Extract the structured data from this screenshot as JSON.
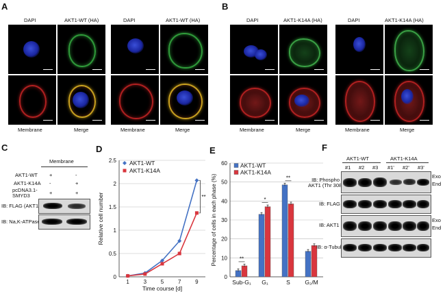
{
  "panels": {
    "A": "A",
    "B": "B",
    "C": "C",
    "D": "D",
    "E": "E",
    "F": "F"
  },
  "panelA": {
    "left": {
      "dapi": "DAPI",
      "stain": "AKT1-WT (HA)",
      "membrane": "Membrane",
      "merge": "Merge"
    },
    "right": {
      "dapi": "DAPI",
      "stain": "AKT1-WT (HA)",
      "membrane": "Membrane",
      "merge": "Merge"
    }
  },
  "panelB": {
    "left": {
      "dapi": "DAPI",
      "stain": "AKT1-K14A (HA)",
      "membrane": "Membrane",
      "merge": "Merge"
    },
    "right": {
      "dapi": "DAPI",
      "stain": "AKT1-K14A (HA)",
      "membrane": "Membrane",
      "merge": "Merge"
    }
  },
  "panelC": {
    "header": "Membrane",
    "rows": [
      {
        "label": "AKT1-WT",
        "lane1": "+",
        "lane2": "-"
      },
      {
        "label": "AKT1-K14A",
        "lane1": "-",
        "lane2": "+"
      },
      {
        "label": "pcDNA3.1-\nSMYD3",
        "lane1": "+",
        "lane2": "+"
      }
    ],
    "blot1": "IB: FLAG (AKT1)",
    "blot2": "IB: Na,K-ATPase"
  },
  "panelD": {
    "chart_data": {
      "type": "line",
      "x": [
        1,
        3,
        5,
        7,
        9
      ],
      "series": [
        {
          "name": "AKT1-WT",
          "values": [
            0.02,
            0.08,
            0.35,
            0.77,
            2.07
          ],
          "color": "#4472c4"
        },
        {
          "name": "AKT1-K14A",
          "values": [
            0.02,
            0.06,
            0.28,
            0.5,
            1.37
          ],
          "color": "#d9363e"
        }
      ],
      "xlabel": "Time course [d]",
      "ylabel": "Relative cell number",
      "ylim": [
        0,
        2.5
      ],
      "yticks": [
        "0",
        "0.5",
        "1",
        "1.5",
        "2",
        "2.5"
      ],
      "xticks": [
        "1",
        "3",
        "5",
        "7",
        "9"
      ],
      "significance": "**"
    }
  },
  "panelE": {
    "chart_data": {
      "type": "bar",
      "categories": [
        "Sub-G₁",
        "G₁",
        "S",
        "G₂/M"
      ],
      "series": [
        {
          "name": "AKT1-WT",
          "values": [
            3.3,
            33,
            48.5,
            13.5
          ],
          "color": "#4472c4"
        },
        {
          "name": "AKT1-K14A",
          "values": [
            5.8,
            37,
            38.5,
            16.5
          ],
          "color": "#d9363e"
        }
      ],
      "ylabel": "Percentage of cells in each phase (%)",
      "ylim": [
        0,
        60
      ],
      "yticks": [
        "0",
        "10",
        "20",
        "30",
        "40",
        "50",
        "60"
      ],
      "significance": [
        "**",
        "*",
        "**",
        ""
      ]
    }
  },
  "panelF": {
    "group1": "AKT1-WT",
    "group2": "AKT1-K14A",
    "lanes": [
      "#1",
      "#2",
      "#3",
      "#1'",
      "#2'",
      "#3'"
    ],
    "blot1": "IB: Phospho\nAKT1 (Thr 308)",
    "blot2": "IB: FLAG",
    "blot3": "IB: AKT1",
    "blot4": "IB: α-Tubulin",
    "exo": "Exo",
    "end": "End"
  }
}
